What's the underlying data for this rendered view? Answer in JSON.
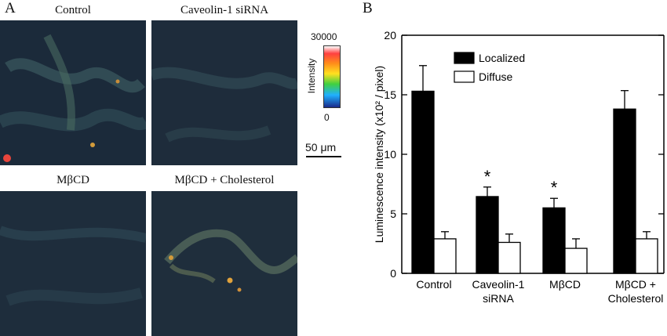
{
  "panel_a": {
    "letter": "A",
    "images": [
      {
        "label": "Control"
      },
      {
        "label": "Caveolin-1 siRNA"
      },
      {
        "label": "MβCD"
      },
      {
        "label": "MβCD + Cholesterol"
      }
    ],
    "colorbar": {
      "max_label": "30000",
      "min_label": "0",
      "title": "Intensity"
    },
    "scale_bar": "50 μm"
  },
  "panel_b": {
    "letter": "B"
  },
  "chart_data": {
    "type": "bar",
    "categories": [
      "Control",
      "Caveolin-1\nsiRNA",
      "MβCD",
      "MβCD +\nCholesterol"
    ],
    "series": [
      {
        "name": "Localized",
        "color": "#000000",
        "values": [
          15.3,
          6.45,
          5.5,
          13.8
        ],
        "errors": [
          2.15,
          0.8,
          0.8,
          1.55
        ]
      },
      {
        "name": "Diffuse",
        "color": "#ffffff",
        "values": [
          2.9,
          2.6,
          2.1,
          2.9
        ],
        "errors": [
          0.6,
          0.7,
          0.8,
          0.6
        ]
      }
    ],
    "significance": [
      null,
      "*",
      "*",
      null
    ],
    "ylabel": "Luminescence intensity",
    "ylabel_unit": "(x10² / pixel)",
    "ylim": [
      0,
      20
    ],
    "yticks": [
      0,
      5,
      10,
      15,
      20
    ],
    "legend_position": "top-center"
  }
}
